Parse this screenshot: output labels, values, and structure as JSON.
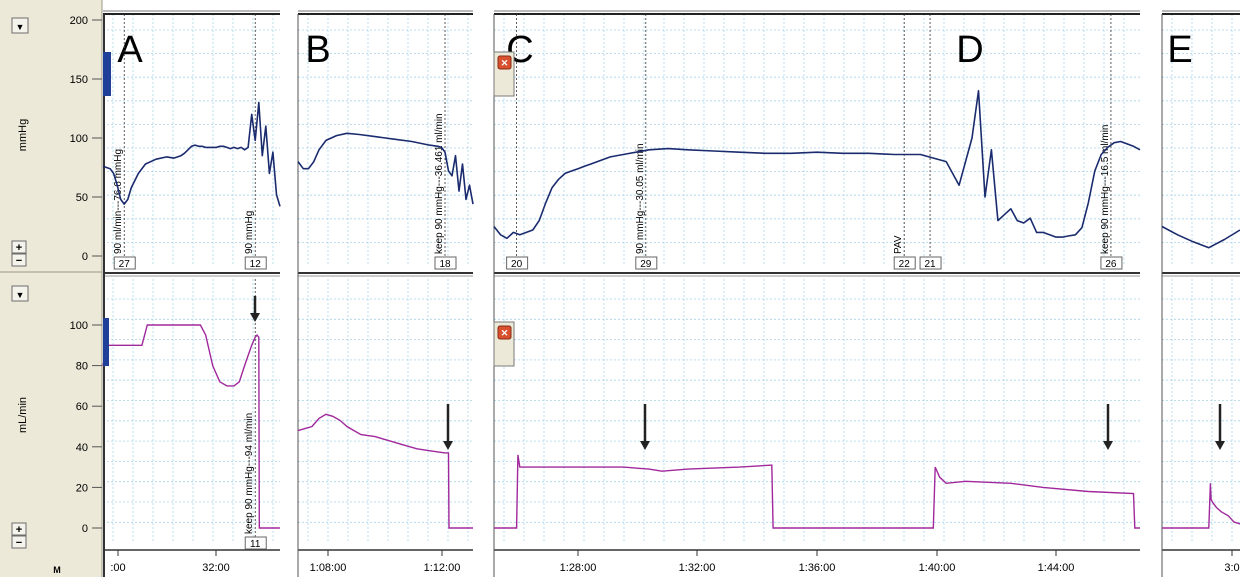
{
  "axes": {
    "top": {
      "unit": "mmHg",
      "ticks": [
        "200",
        "150",
        "100",
        "50",
        "0"
      ],
      "ylim": [
        0,
        200
      ]
    },
    "bottom": {
      "unit": "mL/min",
      "ticks": [
        "100",
        "80",
        "60",
        "40",
        "20",
        "0"
      ],
      "ylim": [
        0,
        100
      ]
    },
    "bottom_corner_label": "M"
  },
  "controls": {
    "collapse_glyph": "▼",
    "plus_glyph": "+",
    "minus_glyph": "−",
    "close_glyph": "✕"
  },
  "chart_data": [
    {
      "type": "line",
      "panel": "A",
      "x_ticks": [
        ":00",
        "32:00"
      ],
      "top_series": {
        "name": "mmHg",
        "color": "#1a2b6e",
        "x": [
          0,
          2,
          4,
          6,
          8,
          10,
          12,
          14,
          16,
          20,
          24,
          30,
          36,
          40,
          44,
          46,
          48,
          50,
          52,
          54,
          56,
          58,
          60,
          62,
          64,
          66,
          68,
          70,
          72,
          74,
          76,
          78,
          80,
          82,
          84,
          86,
          88,
          90,
          92,
          94,
          96,
          98,
          100
        ],
        "y": [
          76,
          75,
          74,
          70,
          60,
          48,
          44,
          48,
          58,
          70,
          78,
          82,
          84,
          83,
          85,
          87,
          90,
          93,
          94,
          93,
          93,
          92,
          92,
          92,
          92,
          93,
          93,
          92,
          91,
          92,
          91,
          92,
          90,
          92,
          120,
          98,
          130,
          85,
          110,
          70,
          88,
          52,
          42
        ]
      },
      "bottom_series": {
        "name": "mL/min",
        "color": "#a0289c",
        "x": [
          0,
          2,
          3,
          22,
          25,
          55,
          58,
          62,
          66,
          70,
          74,
          77,
          80,
          82,
          84,
          86,
          87,
          88,
          88.3,
          100
        ],
        "y": [
          80,
          88,
          90,
          90,
          100,
          100,
          95,
          80,
          72,
          70,
          70,
          72,
          80,
          85,
          90,
          94,
          95,
          94,
          0,
          0
        ]
      },
      "markers": [
        {
          "label": "27",
          "annotation": "90 ml/min---76.6 mmHg",
          "x": 12
        },
        {
          "label": "12",
          "annotation": "90 mmHg",
          "x": 86
        }
      ],
      "bottom_markers": [
        {
          "label": "11",
          "annotation": "keep 90 mmHg---94 ml/min",
          "x": 86
        }
      ]
    },
    {
      "type": "line",
      "panel": "B",
      "x_ticks": [
        "1:08:00",
        "1:12:00"
      ],
      "top_series": {
        "name": "mmHg",
        "color": "#1a2b6e",
        "x": [
          0,
          3,
          6,
          9,
          12,
          16,
          22,
          28,
          35,
          45,
          55,
          65,
          75,
          80,
          82,
          84,
          86,
          88,
          90,
          92,
          94,
          96,
          98,
          100
        ],
        "y": [
          80,
          74,
          74,
          80,
          90,
          98,
          102,
          104,
          103,
          101,
          99,
          97,
          94,
          93,
          92,
          88,
          72,
          68,
          85,
          55,
          78,
          48,
          60,
          44
        ]
      },
      "bottom_series": {
        "name": "mL/min",
        "color": "#a0289c",
        "x": [
          0,
          8,
          12,
          16,
          20,
          24,
          28,
          32,
          36,
          44,
          52,
          60,
          68,
          76,
          84,
          86,
          86.3,
          100
        ],
        "y": [
          48,
          50,
          54,
          56,
          55,
          53,
          50,
          48,
          46,
          45,
          43,
          41,
          39,
          38,
          37,
          37,
          0,
          0
        ]
      },
      "markers": [
        {
          "label": "18",
          "annotation": "keep 90 mmHg---36.461 ml/min",
          "x": 84
        }
      ],
      "bottom_markers": []
    },
    {
      "type": "line",
      "panel": "C–D",
      "x_ticks": [
        "1:28:00",
        "1:32:00",
        "1:36:00",
        "1:40:00",
        "1:44:00"
      ],
      "top_series": {
        "name": "mmHg",
        "color": "#1a2b6e",
        "x": [
          0,
          1,
          2,
          3,
          4,
          5,
          6,
          7,
          8,
          9,
          10,
          11,
          12,
          13,
          14,
          15,
          16,
          17,
          18,
          20,
          22,
          24,
          27,
          30,
          34,
          38,
          42,
          46,
          50,
          54,
          58,
          62,
          66,
          70,
          72,
          74,
          75,
          76,
          77,
          78,
          79,
          80,
          81,
          82,
          83,
          84,
          85,
          86,
          87,
          88,
          89,
          90,
          91,
          92,
          93,
          94,
          95,
          96,
          97,
          98,
          99,
          100
        ],
        "y": [
          25,
          18,
          15,
          20,
          18,
          20,
          22,
          30,
          45,
          58,
          65,
          70,
          72,
          74,
          76,
          78,
          80,
          82,
          84,
          86,
          88,
          90,
          91,
          90,
          89,
          88,
          87,
          87,
          88,
          87,
          87,
          86,
          86,
          80,
          60,
          100,
          140,
          50,
          90,
          30,
          35,
          40,
          30,
          28,
          32,
          20,
          20,
          18,
          16,
          16,
          17,
          18,
          24,
          45,
          72,
          86,
          92,
          96,
          97,
          95,
          93,
          90
        ]
      },
      "bottom_series": {
        "name": "mL/min",
        "color": "#a0289c",
        "x": [
          0,
          3.5,
          3.7,
          4,
          4.5,
          20,
          24,
          26,
          30,
          38,
          43,
          43.2,
          68,
          68.3,
          69,
          70,
          73,
          80,
          85,
          92,
          99,
          99.2,
          100
        ],
        "y": [
          0,
          0,
          36,
          30,
          30,
          30,
          29,
          28,
          29,
          30,
          31,
          0,
          0,
          30,
          25,
          22,
          23,
          22,
          20,
          18,
          17,
          0,
          0
        ]
      },
      "markers": [
        {
          "label": "20",
          "annotation": "",
          "x": 3.5
        },
        {
          "label": "29",
          "annotation": "90 mmHg---30.05 ml/min",
          "x": 23.5
        },
        {
          "label": "22",
          "annotation": "PAV",
          "x": 63.5
        },
        {
          "label": "21",
          "annotation": "",
          "x": 67.5
        },
        {
          "label": "26",
          "annotation": "keep 90 mmHg---16.5 ml/min",
          "x": 95.5
        }
      ],
      "bottom_markers": []
    },
    {
      "type": "line",
      "panel": "E",
      "x_ticks": [
        "3:0"
      ],
      "top_series": {
        "name": "mmHg",
        "color": "#1a2b6e",
        "x": [
          0,
          20,
          40,
          60,
          80,
          100
        ],
        "y": [
          25,
          18,
          12,
          7,
          14,
          22
        ]
      },
      "bottom_series": {
        "name": "mL/min",
        "color": "#a0289c",
        "x": [
          0,
          60,
          62,
          63,
          66,
          70,
          76,
          85,
          92,
          100
        ],
        "y": [
          0,
          0,
          22,
          14,
          12,
          10,
          8,
          6,
          3,
          2
        ]
      },
      "markers": [],
      "bottom_markers": []
    }
  ]
}
